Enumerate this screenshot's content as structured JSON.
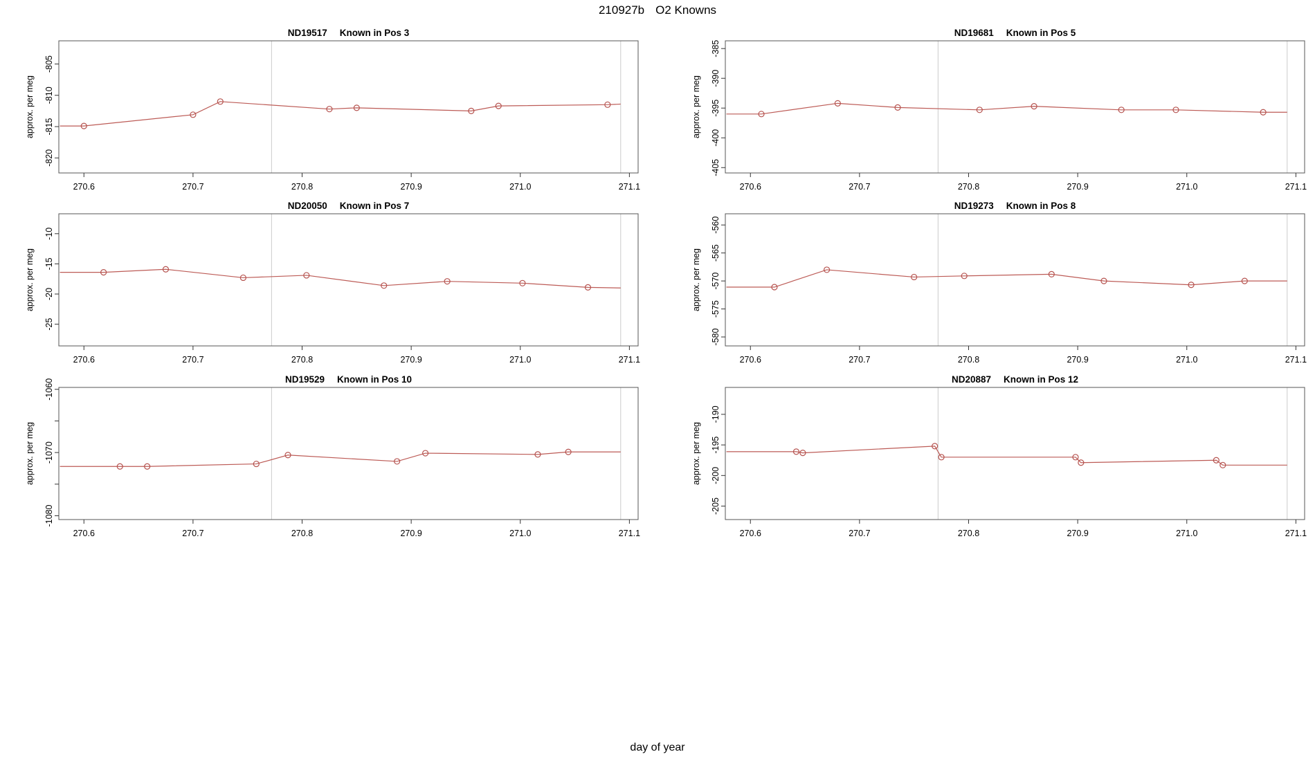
{
  "header": {
    "run_id": "210927b",
    "label": "O2 Knowns"
  },
  "xlabel": "day of year",
  "ylabel": "approx. per meg",
  "chart_data": {
    "type": "line",
    "x_range": [
      270.577,
      271.108
    ],
    "x_ticks": [
      270.6,
      270.7,
      270.8,
      270.9,
      271.0,
      271.1
    ],
    "x_tick_labels": [
      "270.6",
      "270.7",
      "270.8",
      "270.9",
      "271.0",
      "271.1"
    ],
    "run_boundaries_x": [
      270.772,
      271.092
    ],
    "colors": {
      "line": "#bc5a55",
      "marker": "#b5524e",
      "boundary": "#cccccc",
      "box": "#555555",
      "tick": "#333333"
    },
    "panels": [
      {
        "sample_id": "ND19517",
        "known_position": "Known in Pos 3",
        "ylim": [
          -822.4,
          -801.3
        ],
        "yticks": [
          -805,
          -810,
          -815,
          -820
        ],
        "ytick_labels": [
          "-805",
          "-810",
          "-815",
          "-820"
        ],
        "line_start": [
          270.578,
          -814.9
        ],
        "line_end": [
          271.092,
          -811.4
        ],
        "points": [
          [
            270.6,
            -814.9
          ],
          [
            270.7,
            -813.1
          ],
          [
            270.725,
            -811.0
          ],
          [
            270.825,
            -812.2
          ],
          [
            270.85,
            -812.0
          ],
          [
            270.955,
            -812.5
          ],
          [
            270.98,
            -811.7
          ],
          [
            271.08,
            -811.5
          ]
        ]
      },
      {
        "sample_id": "ND19681",
        "known_position": "Known in Pos 5",
        "ylim": [
          -405.9,
          -383.7
        ],
        "yticks": [
          -385,
          -390,
          -395,
          -400,
          -405
        ],
        "ytick_labels": [
          "-385",
          "-390",
          "-395",
          "-400",
          "-405"
        ],
        "line_start": [
          270.578,
          -396.0
        ],
        "line_end": [
          271.092,
          -395.7
        ],
        "points": [
          [
            270.61,
            -396.0
          ],
          [
            270.68,
            -394.2
          ],
          [
            270.735,
            -394.9
          ],
          [
            270.81,
            -395.3
          ],
          [
            270.86,
            -394.7
          ],
          [
            270.94,
            -395.3
          ],
          [
            270.99,
            -395.3
          ],
          [
            271.07,
            -395.7
          ]
        ]
      },
      {
        "sample_id": "ND20050",
        "known_position": "Known in Pos 7",
        "ylim": [
          -28.6,
          -6.7
        ],
        "yticks": [
          -10,
          -15,
          -20,
          -25
        ],
        "ytick_labels": [
          "-10",
          "-15",
          "-20",
          "-25"
        ],
        "line_start": [
          270.578,
          -16.4
        ],
        "line_end": [
          271.092,
          -19.0
        ],
        "points": [
          [
            270.618,
            -16.4
          ],
          [
            270.675,
            -15.9
          ],
          [
            270.746,
            -17.3
          ],
          [
            270.804,
            -16.9
          ],
          [
            270.875,
            -18.6
          ],
          [
            270.933,
            -17.9
          ],
          [
            271.002,
            -18.2
          ],
          [
            271.062,
            -18.9
          ]
        ]
      },
      {
        "sample_id": "ND19273",
        "known_position": "Known in Pos 8",
        "ylim": [
          -581.6,
          -558.0
        ],
        "yticks": [
          -560,
          -565,
          -570,
          -575,
          -580
        ],
        "ytick_labels": [
          "-560",
          "-565",
          "-570",
          "-575",
          "-580"
        ],
        "line_start": [
          270.578,
          -571.1
        ],
        "line_end": [
          271.092,
          -570.0
        ],
        "points": [
          [
            270.622,
            -571.1
          ],
          [
            270.67,
            -568.0
          ],
          [
            270.75,
            -569.3
          ],
          [
            270.796,
            -569.1
          ],
          [
            270.876,
            -568.8
          ],
          [
            270.924,
            -570.0
          ],
          [
            271.004,
            -570.7
          ],
          [
            271.053,
            -570.0
          ]
        ]
      },
      {
        "sample_id": "ND19529",
        "known_position": "Known in Pos 10",
        "ylim": [
          -1080.6,
          -1059.7
        ],
        "yticks": [
          -1060,
          -1065,
          -1070,
          -1075,
          -1080
        ],
        "ytick_labels": [
          "-1060",
          null,
          "-1070",
          null,
          "-1080"
        ],
        "line_start": [
          270.578,
          -1072.2
        ],
        "line_end": [
          271.092,
          -1069.9
        ],
        "points": [
          [
            270.633,
            -1072.2
          ],
          [
            270.658,
            -1072.2
          ],
          [
            270.758,
            -1071.8
          ],
          [
            270.787,
            -1070.4
          ],
          [
            270.887,
            -1071.4
          ],
          [
            270.913,
            -1070.1
          ],
          [
            271.016,
            -1070.3
          ],
          [
            271.044,
            -1069.9
          ]
        ]
      },
      {
        "sample_id": "ND20887",
        "known_position": "Known in Pos 12",
        "ylim": [
          -207.2,
          -185.6
        ],
        "yticks": [
          -190,
          -195,
          -200,
          -205
        ],
        "ytick_labels": [
          "-190",
          "-195",
          "-200",
          "-205"
        ],
        "line_start": [
          270.578,
          -196.1
        ],
        "line_end": [
          271.092,
          -198.3
        ],
        "points": [
          [
            270.642,
            -196.1
          ],
          [
            270.648,
            -196.3
          ],
          [
            270.769,
            -195.2
          ],
          [
            270.775,
            -197.0
          ],
          [
            270.898,
            -197.0
          ],
          [
            270.903,
            -197.9
          ],
          [
            271.027,
            -197.5
          ],
          [
            271.033,
            -198.3
          ]
        ]
      }
    ]
  }
}
